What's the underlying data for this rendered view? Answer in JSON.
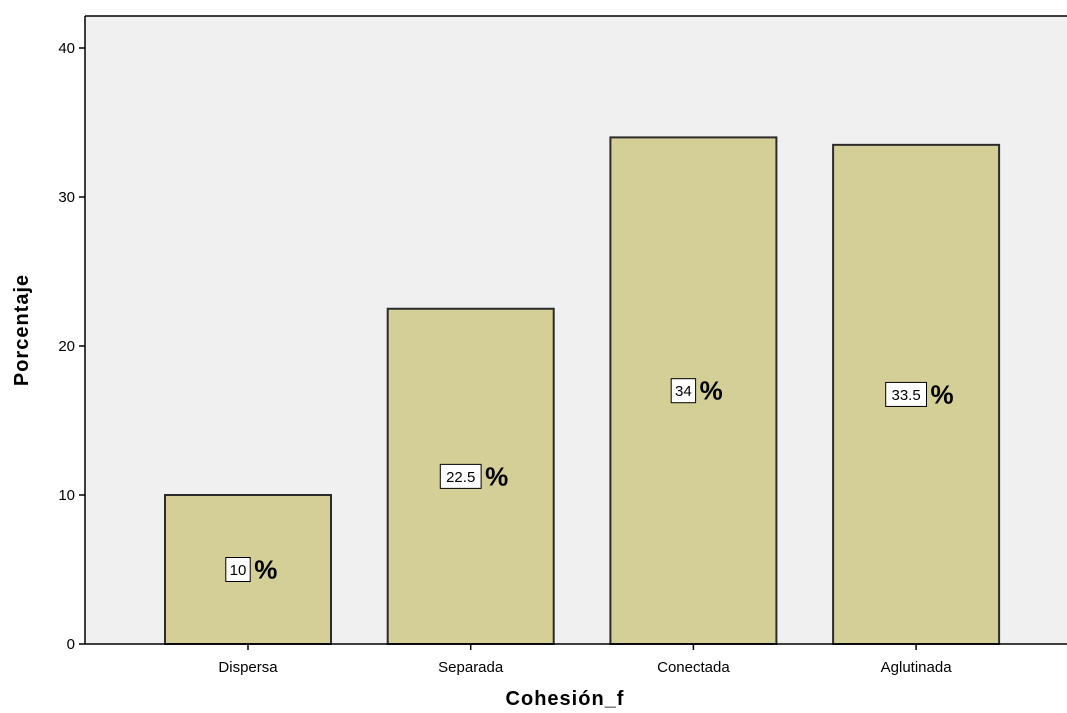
{
  "chart_data": {
    "type": "bar",
    "categories": [
      "Dispersa",
      "Separada",
      "Conectada",
      "Aglutinada"
    ],
    "values": [
      10,
      22.5,
      34,
      33.5
    ],
    "data_labels": [
      "10",
      "22.5",
      "34",
      "33.5"
    ],
    "label_suffix": "%",
    "xlabel": "Cohesión_f",
    "ylabel": "Porcentaje",
    "ylim": [
      0,
      40
    ],
    "yticks": [
      0,
      10,
      20,
      30,
      40
    ],
    "grid": false,
    "colors": {
      "bar_fill": "#D4CF96",
      "bar_stroke": "#2B2B2B",
      "plot_background": "#F0F0F0"
    }
  }
}
